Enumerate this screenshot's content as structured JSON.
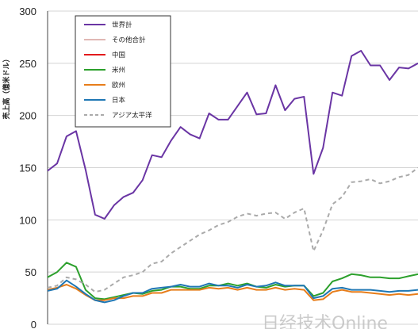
{
  "chart_data": {
    "type": "line",
    "ylabel": "売上高（億米ドル）",
    "ylim": [
      0,
      300
    ],
    "yticks": [
      0,
      50,
      100,
      150,
      200,
      250,
      300
    ],
    "grid": true,
    "legend_position": "top-left",
    "n_points": 40,
    "series": [
      {
        "name": "世界計",
        "color": "#6a35a4",
        "dashed": false,
        "values": [
          147,
          154,
          180,
          185,
          148,
          105,
          101,
          114,
          122,
          126,
          138,
          162,
          160,
          176,
          189,
          182,
          178,
          202,
          196,
          196,
          209,
          222,
          201,
          202,
          229,
          205,
          216,
          218,
          144,
          169,
          222,
          219,
          257,
          262,
          248,
          248,
          234,
          246,
          245,
          250
        ]
      },
      {
        "name": "その他合計",
        "color": "#e0b8b4",
        "dashed": false,
        "values": null
      },
      {
        "name": "中国",
        "color": "#e31a1c",
        "dashed": false,
        "values": null
      },
      {
        "name": "米州",
        "color": "#2ca02c",
        "dashed": false,
        "values": [
          45,
          50,
          59,
          55,
          33,
          25,
          24,
          26,
          28,
          30,
          29,
          32,
          33,
          36,
          36,
          34,
          34,
          37,
          37,
          39,
          37,
          39,
          36,
          35,
          38,
          36,
          37,
          37,
          27,
          30,
          41,
          44,
          48,
          47,
          45,
          45,
          44,
          44,
          46,
          48
        ]
      },
      {
        "name": "欧州",
        "color": "#e77d1a",
        "dashed": false,
        "values": [
          33,
          35,
          38,
          34,
          28,
          23,
          23,
          25,
          25,
          27,
          27,
          30,
          30,
          33,
          33,
          33,
          33,
          35,
          34,
          35,
          33,
          35,
          33,
          33,
          35,
          33,
          34,
          33,
          23,
          24,
          31,
          33,
          31,
          31,
          30,
          29,
          28,
          29,
          28,
          29
        ]
      },
      {
        "name": "日本",
        "color": "#1f77b4",
        "dashed": false,
        "values": [
          32,
          34,
          42,
          36,
          29,
          23,
          21,
          23,
          27,
          30,
          30,
          34,
          35,
          36,
          38,
          36,
          36,
          39,
          37,
          37,
          35,
          38,
          36,
          37,
          40,
          37,
          37,
          37,
          25,
          27,
          34,
          35,
          33,
          33,
          33,
          32,
          31,
          32,
          32,
          33
        ]
      },
      {
        "name": "アジア太平洋",
        "color": "#aaaaaa",
        "dashed": true,
        "values": [
          35,
          37,
          45,
          43,
          38,
          31,
          33,
          39,
          45,
          47,
          50,
          58,
          60,
          68,
          74,
          80,
          86,
          90,
          95,
          98,
          103,
          106,
          104,
          106,
          107,
          101,
          107,
          111,
          70,
          90,
          115,
          122,
          136,
          137,
          139,
          135,
          137,
          141,
          143,
          150
        ]
      }
    ]
  },
  "watermark": "日经技术Online"
}
